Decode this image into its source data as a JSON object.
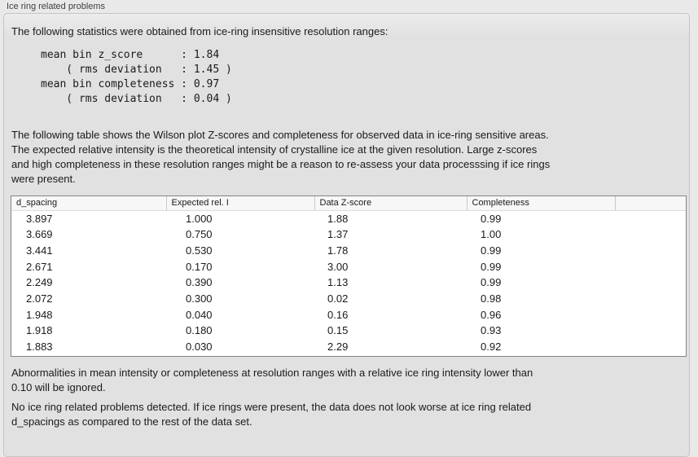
{
  "groupbox": {
    "title": "Ice ring related problems"
  },
  "intro": {
    "text": "The following statistics were obtained from ice-ring insensitive resolution ranges:"
  },
  "stats_block": {
    "text": "mean bin z_score      : 1.84\n    ( rms deviation   : 1.45 )\nmean bin completeness : 0.97\n    ( rms deviation   : 0.04 )"
  },
  "description": {
    "text": "The following table shows the Wilson plot Z-scores and completeness for observed data in ice-ring sensitive areas.\nThe expected relative intensity is the theoretical intensity of crystalline ice at the given resolution. Large z-scores\nand high completeness in these resolution ranges might be a reason to re-assess your data processsing if ice rings\nwere present."
  },
  "table": {
    "columns": [
      "d_spacing",
      "Expected rel. I",
      "Data Z-score",
      "Completeness",
      ""
    ],
    "rows": [
      [
        "3.897",
        "1.000",
        "1.88",
        "0.99"
      ],
      [
        "3.669",
        "0.750",
        "1.37",
        "1.00"
      ],
      [
        "3.441",
        "0.530",
        "1.78",
        "0.99"
      ],
      [
        "2.671",
        "0.170",
        "3.00",
        "0.99"
      ],
      [
        "2.249",
        "0.390",
        "1.13",
        "0.99"
      ],
      [
        "2.072",
        "0.300",
        "0.02",
        "0.98"
      ],
      [
        "1.948",
        "0.040",
        "0.16",
        "0.96"
      ],
      [
        "1.918",
        "0.180",
        "0.15",
        "0.93"
      ],
      [
        "1.883",
        "0.030",
        "2.29",
        "0.92"
      ]
    ]
  },
  "note_ignore": {
    "text": "Abnormalities in mean intensity or completeness at resolution ranges with a relative ice ring intensity lower than\n0.10 will be ignored."
  },
  "conclusion": {
    "text": "No ice ring related problems detected. If ice rings were present, the data does not look worse at ice ring related\nd_spacings as compared to the rest of the data set."
  },
  "colors": {
    "outer_background": "#e9e9e9",
    "panel_background": "#e1e1e1",
    "panel_border": "#c5c5c5",
    "table_border": "#848484",
    "table_header_background": "#f7f7f7",
    "text": "#1a1a1a"
  }
}
